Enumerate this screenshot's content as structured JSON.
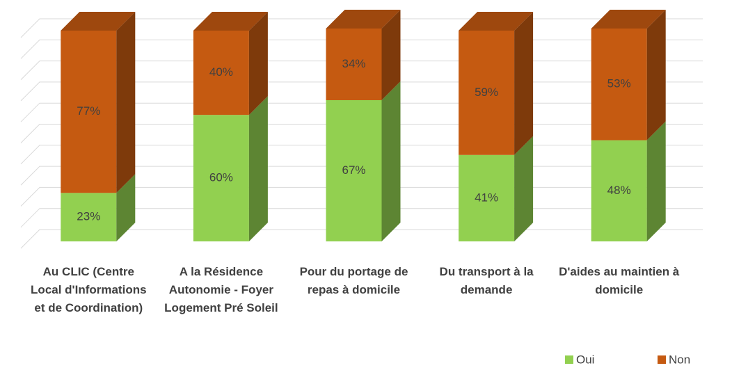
{
  "chart_data": {
    "type": "bar3d_stacked",
    "categories": [
      "Au CLIC (Centre Local d'Informations et de Coordination)",
      "A la Résidence Autonomie - Foyer Logement Pré Soleil",
      "Pour du portage de repas à domicile",
      "Du transport à la demande",
      "D'aides au maintien à domicile"
    ],
    "series": [
      {
        "name": "Oui",
        "color": "#92d050",
        "values": [
          23,
          60,
          67,
          41,
          48
        ],
        "value_labels": [
          "23%",
          "60%",
          "67%",
          "41%",
          "48%"
        ]
      },
      {
        "name": "Non",
        "color": "#c55a11",
        "values": [
          77,
          40,
          34,
          59,
          53
        ],
        "value_labels": [
          "77%",
          "40%",
          "34%",
          "59%",
          "53%"
        ]
      }
    ],
    "ylim": [
      0,
      100
    ],
    "yticks": [
      0,
      10,
      20,
      30,
      40,
      50,
      60,
      70,
      80,
      90,
      100
    ],
    "grid": true,
    "legend": "bottom-right"
  }
}
